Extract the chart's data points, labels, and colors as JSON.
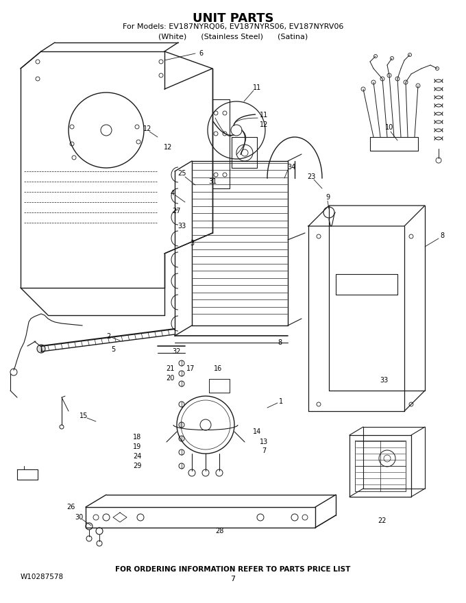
{
  "title": "UNIT PARTS",
  "subtitle_line1": "For Models: EV187NYRQ06, EV187NYRS06, EV187NYRV06",
  "subtitle_line2": "(White)      (Stainless Steel)      (Satina)",
  "footer_left": "W10287578",
  "footer_center": "FOR ORDERING INFORMATION REFER TO PARTS PRICE LIST",
  "footer_page": "7",
  "bg_color": "#ffffff",
  "text_color": "#000000",
  "fig_width": 6.8,
  "fig_height": 8.8,
  "dpi": 100
}
